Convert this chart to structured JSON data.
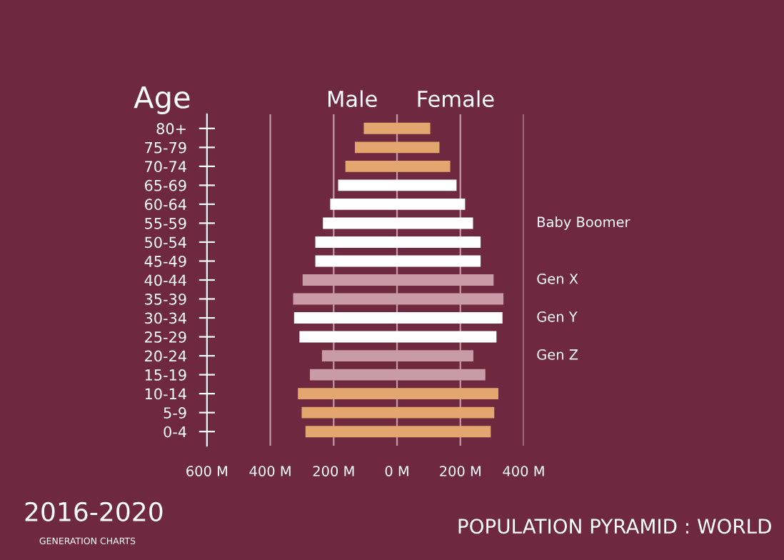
{
  "chart_data": {
    "type": "bar",
    "orientation": "horizontal",
    "stacked": true,
    "title": "POPULATION PYRAMID : WORLD",
    "subtitle": "2016-2020",
    "ylabel": "Age",
    "categories": [
      "80+",
      "75-79",
      "70-74",
      "65-69",
      "60-64",
      "55-59",
      "50-54",
      "45-49",
      "40-44",
      "35-39",
      "30-34",
      "25-29",
      "20-24",
      "15-19",
      "10-14",
      "5-9",
      "0-4"
    ],
    "series": [
      {
        "name": "Male",
        "values": [
          -105,
          -133,
          -163,
          -186,
          -211,
          -234,
          -258,
          -258,
          -298,
          -328,
          -325,
          -308,
          -237,
          -275,
          -313,
          -301,
          -289
        ],
        "colors": [
          "#e3a66f",
          "#e3a66f",
          "#e3a66f",
          "#ffffff",
          "#ffffff",
          "#ffffff",
          "#ffffff",
          "#ffffff",
          "#c99aa8",
          "#c99aa8",
          "#ffffff",
          "#ffffff",
          "#c99aa8",
          "#c99aa8",
          "#e3a66f",
          "#e3a66f",
          "#e3a66f"
        ]
      },
      {
        "name": "Female",
        "values": [
          105,
          134,
          168,
          188,
          215,
          240,
          264,
          264,
          305,
          336,
          333,
          314,
          241,
          279,
          320,
          307,
          296
        ],
        "colors": [
          "#e3a66f",
          "#e3a66f",
          "#e3a66f",
          "#ffffff",
          "#ffffff",
          "#ffffff",
          "#ffffff",
          "#ffffff",
          "#c99aa8",
          "#c99aa8",
          "#ffffff",
          "#ffffff",
          "#c99aa8",
          "#c99aa8",
          "#e3a66f",
          "#e3a66f",
          "#e3a66f"
        ]
      }
    ],
    "xlim": [
      -600,
      400
    ],
    "xticks": [
      {
        "value": -600,
        "label": "600 M"
      },
      {
        "value": -400,
        "label": "400 M"
      },
      {
        "value": -200,
        "label": "200 M"
      },
      {
        "value": 0,
        "label": "0 M"
      },
      {
        "value": 200,
        "label": "200 M"
      },
      {
        "value": 400,
        "label": "400 M"
      }
    ],
    "grid": "x",
    "legend": false,
    "annotations": [
      "Baby Boomer",
      "Gen X",
      "Gen Y",
      "Gen Z",
      "GENERATION CHARTS"
    ]
  }
}
